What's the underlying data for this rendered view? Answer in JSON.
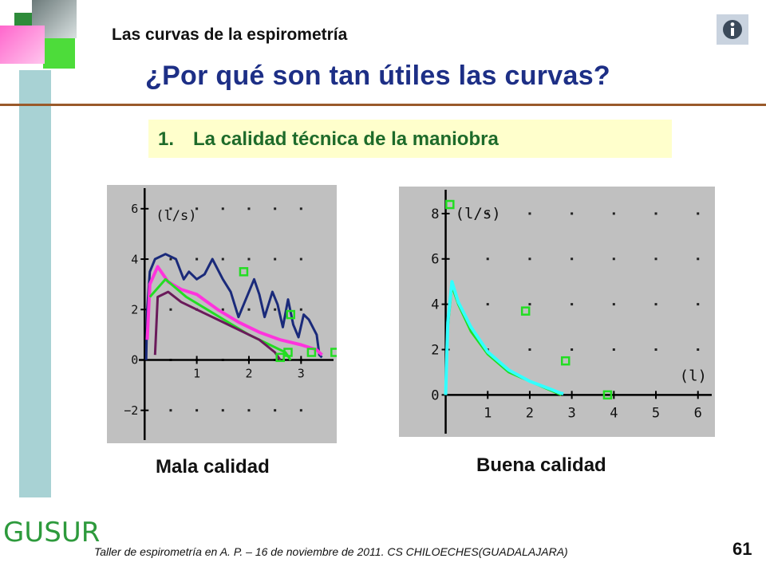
{
  "header": {
    "subtitle": "Las curvas de la espirometría",
    "title": "¿Por qué son tan útiles las curvas?"
  },
  "banner": {
    "number": "1.",
    "text": "La calidad técnica de la maniobra"
  },
  "colors": {
    "title": "#1d2f86",
    "banner_text": "#1e6b2a",
    "banner_bg": "#ffffcc",
    "rule": "#9a5a2a",
    "plot_bg": "#c0c0c0",
    "navy": "#1a2a7a",
    "magenta": "#ff33dd",
    "purple": "#6a1a5a",
    "green": "#22dd22",
    "cyan": "#33ffff"
  },
  "icons": {
    "info": "info-icon",
    "logo": "gusur-logo"
  },
  "chart_data": [
    {
      "type": "line",
      "caption": "Mala calidad",
      "ylabel": "(l/s)",
      "xlim": [
        -0.05,
        3.5
      ],
      "ylim": [
        -2.8,
        6.5
      ],
      "xticks": [
        1,
        2,
        3
      ],
      "yticks": [
        -2,
        0,
        2,
        4,
        6
      ],
      "grid_dots_x": [
        0.5,
        1,
        1.5,
        2,
        2.5,
        3
      ],
      "grid_dots_y": [
        -2,
        0,
        2,
        4,
        6
      ],
      "series": [
        {
          "color": "#1a2a7a",
          "points": [
            [
              0.03,
              0
            ],
            [
              0.05,
              2.0
            ],
            [
              0.1,
              3.5
            ],
            [
              0.2,
              4.0
            ],
            [
              0.4,
              4.2
            ],
            [
              0.6,
              4.0
            ],
            [
              0.75,
              3.2
            ],
            [
              0.85,
              3.5
            ],
            [
              1.0,
              3.2
            ],
            [
              1.15,
              3.4
            ],
            [
              1.3,
              4.0
            ],
            [
              1.5,
              3.2
            ],
            [
              1.65,
              2.7
            ],
            [
              1.8,
              1.7
            ],
            [
              1.9,
              2.2
            ],
            [
              2.1,
              3.2
            ],
            [
              2.2,
              2.6
            ],
            [
              2.3,
              1.7
            ],
            [
              2.45,
              2.7
            ],
            [
              2.55,
              2.2
            ],
            [
              2.65,
              1.3
            ],
            [
              2.75,
              2.4
            ],
            [
              2.85,
              1.4
            ],
            [
              2.95,
              0.9
            ],
            [
              3.05,
              1.8
            ],
            [
              3.15,
              1.6
            ],
            [
              3.3,
              1.0
            ],
            [
              3.35,
              0.2
            ],
            [
              3.4,
              0.1
            ]
          ]
        },
        {
          "color": "#ff33dd",
          "points": [
            [
              0.05,
              0.8
            ],
            [
              0.1,
              3.0
            ],
            [
              0.25,
              3.7
            ],
            [
              0.45,
              3.1
            ],
            [
              0.7,
              2.8
            ],
            [
              1.0,
              2.6
            ],
            [
              1.4,
              2.0
            ],
            [
              1.8,
              1.5
            ],
            [
              2.2,
              1.1
            ],
            [
              2.6,
              0.8
            ],
            [
              3.0,
              0.6
            ],
            [
              3.3,
              0.4
            ],
            [
              3.4,
              0.2
            ]
          ]
        },
        {
          "color": "#22dd22",
          "points": [
            [
              0.1,
              2.5
            ],
            [
              0.4,
              3.2
            ],
            [
              0.8,
              2.5
            ],
            [
              1.2,
              2.0
            ],
            [
              1.6,
              1.5
            ],
            [
              2.0,
              1.0
            ],
            [
              2.4,
              0.6
            ],
            [
              2.7,
              0.3
            ],
            [
              2.8,
              0
            ]
          ]
        },
        {
          "color": "#6a1a5a",
          "points": [
            [
              0.2,
              0.2
            ],
            [
              0.25,
              2.5
            ],
            [
              0.45,
              2.7
            ],
            [
              0.7,
              2.3
            ],
            [
              1.0,
              2.0
            ],
            [
              1.4,
              1.6
            ],
            [
              1.8,
              1.2
            ],
            [
              2.2,
              0.8
            ],
            [
              2.5,
              0.3
            ],
            [
              2.6,
              0
            ]
          ]
        }
      ],
      "markers": [
        [
          1.9,
          3.5
        ],
        [
          2.8,
          1.8
        ],
        [
          2.75,
          0.3
        ],
        [
          2.6,
          0.1
        ],
        [
          3.2,
          0.3
        ],
        [
          3.65,
          0.3
        ]
      ]
    },
    {
      "type": "line",
      "caption": "Buena calidad",
      "ylabel": "(l/s)",
      "xlabel": "(l)",
      "xlim": [
        -0.2,
        6.1
      ],
      "ylim": [
        -1.5,
        8.7
      ],
      "xticks": [
        1,
        2,
        3,
        4,
        5,
        6
      ],
      "yticks": [
        0,
        2,
        4,
        6,
        8
      ],
      "grid_dots_x": [
        1,
        2,
        3,
        4,
        5,
        6
      ],
      "grid_dots_y": [
        2,
        4,
        6,
        8
      ],
      "series": [
        {
          "color": "#22dd22",
          "points": [
            [
              0,
              0
            ],
            [
              0.05,
              3.0
            ],
            [
              0.15,
              4.8
            ],
            [
              0.3,
              4.0
            ],
            [
              0.6,
              2.8
            ],
            [
              1.0,
              1.8
            ],
            [
              1.5,
              1.0
            ],
            [
              2.0,
              0.6
            ],
            [
              2.5,
              0.2
            ],
            [
              2.75,
              0
            ]
          ]
        },
        {
          "color": "#33ffff",
          "points": [
            [
              0,
              0
            ],
            [
              0.05,
              3.2
            ],
            [
              0.15,
              5.0
            ],
            [
              0.3,
              4.1
            ],
            [
              0.6,
              3.0
            ],
            [
              1.0,
              1.9
            ],
            [
              1.5,
              1.1
            ],
            [
              2.0,
              0.6
            ],
            [
              2.5,
              0.25
            ],
            [
              2.7,
              0.1
            ],
            [
              2.8,
              0.05
            ]
          ]
        }
      ],
      "markers": [
        [
          0.1,
          8.4
        ],
        [
          1.9,
          3.7
        ],
        [
          2.85,
          1.5
        ],
        [
          3.85,
          0
        ]
      ]
    }
  ],
  "captions": {
    "left": "Mala calidad",
    "right": "Buena calidad"
  },
  "footer": {
    "text": "Taller de espirometría en A. P. – 16 de noviembre de 2011. CS CHILOECHES(GUADALAJARA)",
    "page": "61",
    "logo": "GUSUR"
  }
}
